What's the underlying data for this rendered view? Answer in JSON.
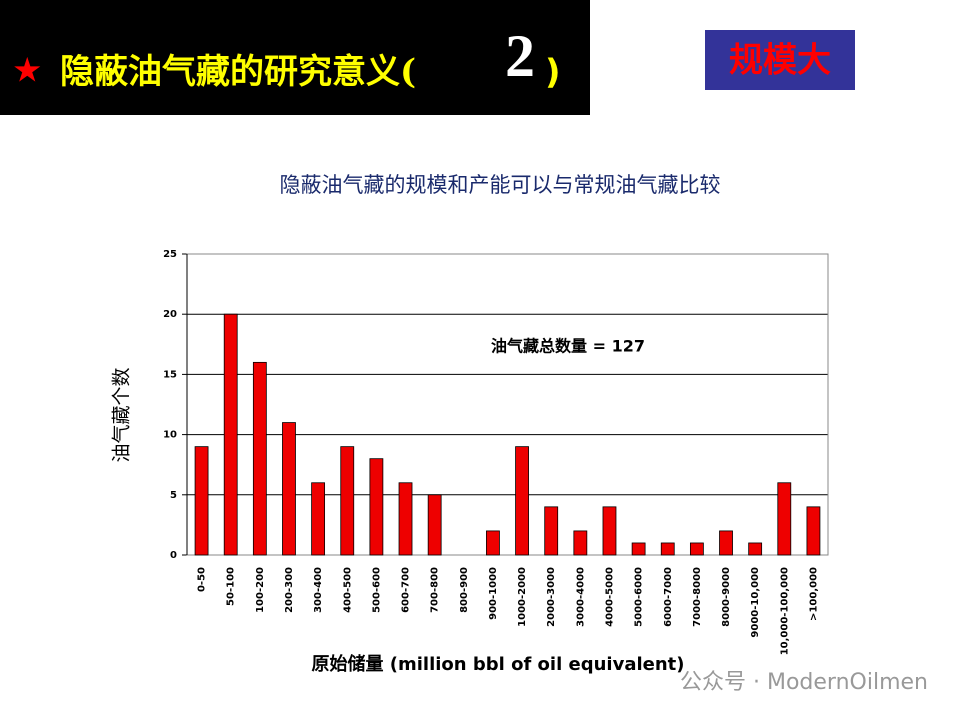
{
  "header": {
    "star": "★",
    "title": "隐蔽油气藏的研究意义(",
    "number": "2",
    "close": ")"
  },
  "badge": "规模大",
  "watermark": "公众号 · ModernOilmen",
  "chart_data": {
    "type": "bar",
    "title": "隐蔽油气藏的规模和产能可以与常规油气藏比较",
    "y_label": "油气藏个数",
    "x_label": "原始储量 (million bbl of oil equivalent)",
    "annotation": "油气藏总数量 = 127",
    "categories": [
      "0-50",
      "50-100",
      "100-200",
      "200-300",
      "300-400",
      "400-500",
      "500-600",
      "600-700",
      "700-800",
      "800-900",
      "900-1000",
      "1000-2000",
      "2000-3000",
      "3000-4000",
      "4000-5000",
      "5000-6000",
      "6000-7000",
      "7000-8000",
      "8000-9000",
      "9000-10,000",
      "10,000-100,000",
      ">100,000"
    ],
    "values": [
      9,
      20,
      16,
      11,
      6,
      9,
      8,
      6,
      5,
      0,
      2,
      9,
      4,
      2,
      4,
      1,
      1,
      1,
      2,
      1,
      6,
      4
    ],
    "color": "#ee0000",
    "ylim": [
      0,
      25
    ],
    "yticks": [
      0,
      5,
      10,
      15,
      20,
      25
    ],
    "grid": true
  }
}
